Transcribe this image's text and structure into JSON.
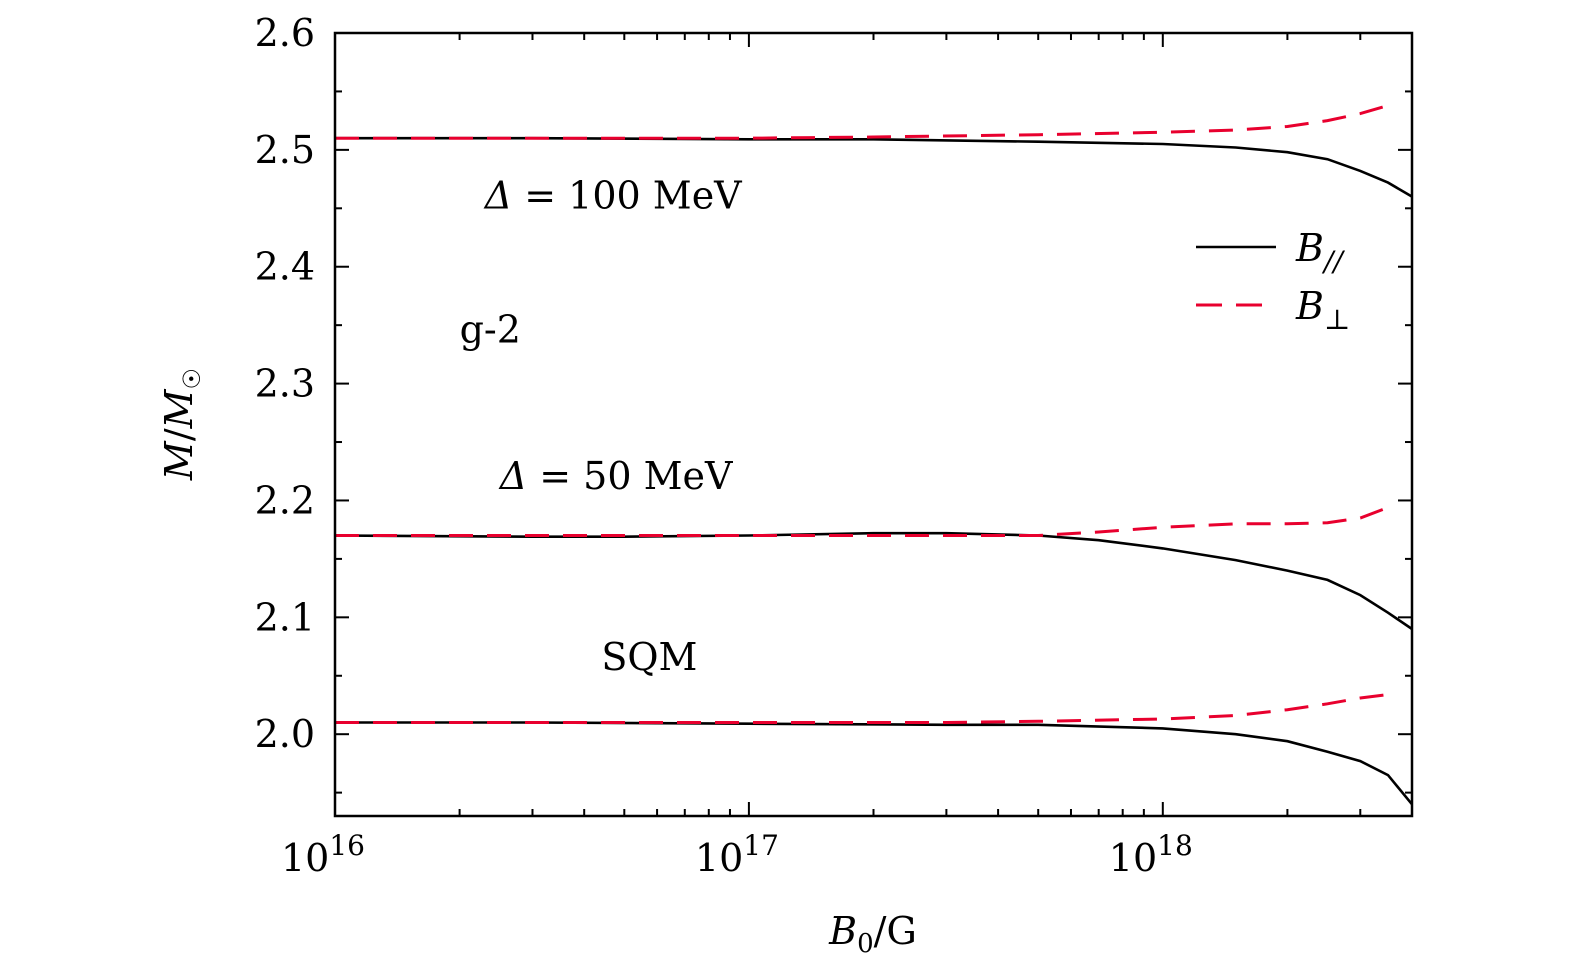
{
  "chart_data": {
    "type": "line",
    "xlabel": "B0/G",
    "ylabel": "M/M☉",
    "x_scale": "log",
    "xlim": [
      1e+16,
      4e+18
    ],
    "ylim": [
      1.93,
      2.6
    ],
    "x_tick_labels": [
      {
        "base": "10",
        "exp": "16"
      },
      {
        "base": "10",
        "exp": "17"
      },
      {
        "base": "10",
        "exp": "18"
      }
    ],
    "y_tick_labels": [
      "2.0",
      "2.1",
      "2.2",
      "2.3",
      "2.4",
      "2.5",
      "2.6"
    ],
    "grid": false,
    "legend_position": "top-right",
    "legend": [
      {
        "label": "B//",
        "style": "solid",
        "color": "#000000"
      },
      {
        "label": "B⊥",
        "style": "dashed",
        "color": "#e8002e"
      }
    ],
    "annotations": [
      {
        "text": "Δ = 100 MeV",
        "x": 2.3e+16,
        "y": 2.45
      },
      {
        "text": "g-2",
        "x": 2e+16,
        "y": 2.335
      },
      {
        "text": "Δ = 50 MeV",
        "x": 2.5e+16,
        "y": 2.21
      },
      {
        "text": "SQM",
        "x": 4.4e+16,
        "y": 2.055
      }
    ],
    "series": [
      {
        "group": "Δ = 100 MeV",
        "style": "solid",
        "color": "#000000",
        "x": [
          1e+16,
          3e+16,
          1e+17,
          2e+17,
          5e+17,
          1e+18,
          1.5e+18,
          2e+18,
          2.5e+18,
          3e+18,
          3.5e+18,
          4e+18
        ],
        "values": [
          2.51,
          2.51,
          2.509,
          2.509,
          2.507,
          2.505,
          2.502,
          2.498,
          2.492,
          2.482,
          2.472,
          2.46
        ]
      },
      {
        "group": "Δ = 100 MeV",
        "style": "dashed",
        "color": "#e8002e",
        "x": [
          1e+16,
          3e+16,
          1e+17,
          2e+17,
          5e+17,
          1e+18,
          1.5e+18,
          2e+18,
          2.5e+18,
          3e+18,
          3.5e+18
        ],
        "values": [
          2.51,
          2.51,
          2.51,
          2.511,
          2.513,
          2.515,
          2.517,
          2.52,
          2.525,
          2.531,
          2.538
        ]
      },
      {
        "group": "Δ = 50 MeV",
        "style": "solid",
        "color": "#000000",
        "x": [
          1e+16,
          3e+16,
          5e+16,
          1e+17,
          2e+17,
          3e+17,
          5e+17,
          7e+17,
          1e+18,
          1.5e+18,
          2e+18,
          2.5e+18,
          3e+18,
          3.5e+18,
          4e+18
        ],
        "values": [
          2.17,
          2.169,
          2.169,
          2.17,
          2.172,
          2.172,
          2.17,
          2.166,
          2.159,
          2.149,
          2.14,
          2.132,
          2.119,
          2.104,
          2.09
        ]
      },
      {
        "group": "Δ = 50 MeV",
        "style": "dashed",
        "color": "#e8002e",
        "x": [
          1e+16,
          3e+16,
          1e+17,
          2e+17,
          5e+17,
          7e+17,
          1e+18,
          1.5e+18,
          2e+18,
          2.5e+18,
          3e+18,
          3.5e+18
        ],
        "values": [
          2.17,
          2.17,
          2.17,
          2.17,
          2.17,
          2.173,
          2.177,
          2.18,
          2.18,
          2.181,
          2.185,
          2.194
        ]
      },
      {
        "group": "SQM",
        "style": "solid",
        "color": "#000000",
        "x": [
          1e+16,
          3e+16,
          1e+17,
          3e+17,
          5e+17,
          1e+18,
          1.5e+18,
          2e+18,
          2.5e+18,
          3e+18,
          3.5e+18,
          4e+18
        ],
        "values": [
          2.01,
          2.01,
          2.009,
          2.008,
          2.008,
          2.005,
          2.0,
          1.994,
          1.985,
          1.977,
          1.965,
          1.94
        ]
      },
      {
        "group": "SQM",
        "style": "dashed",
        "color": "#e8002e",
        "x": [
          1e+16,
          3e+16,
          1e+17,
          3e+17,
          5e+17,
          1e+18,
          1.5e+18,
          2e+18,
          2.5e+18,
          3e+18,
          3.5e+18
        ],
        "values": [
          2.01,
          2.01,
          2.01,
          2.01,
          2.011,
          2.013,
          2.016,
          2.021,
          2.026,
          2.031,
          2.034
        ]
      }
    ]
  }
}
